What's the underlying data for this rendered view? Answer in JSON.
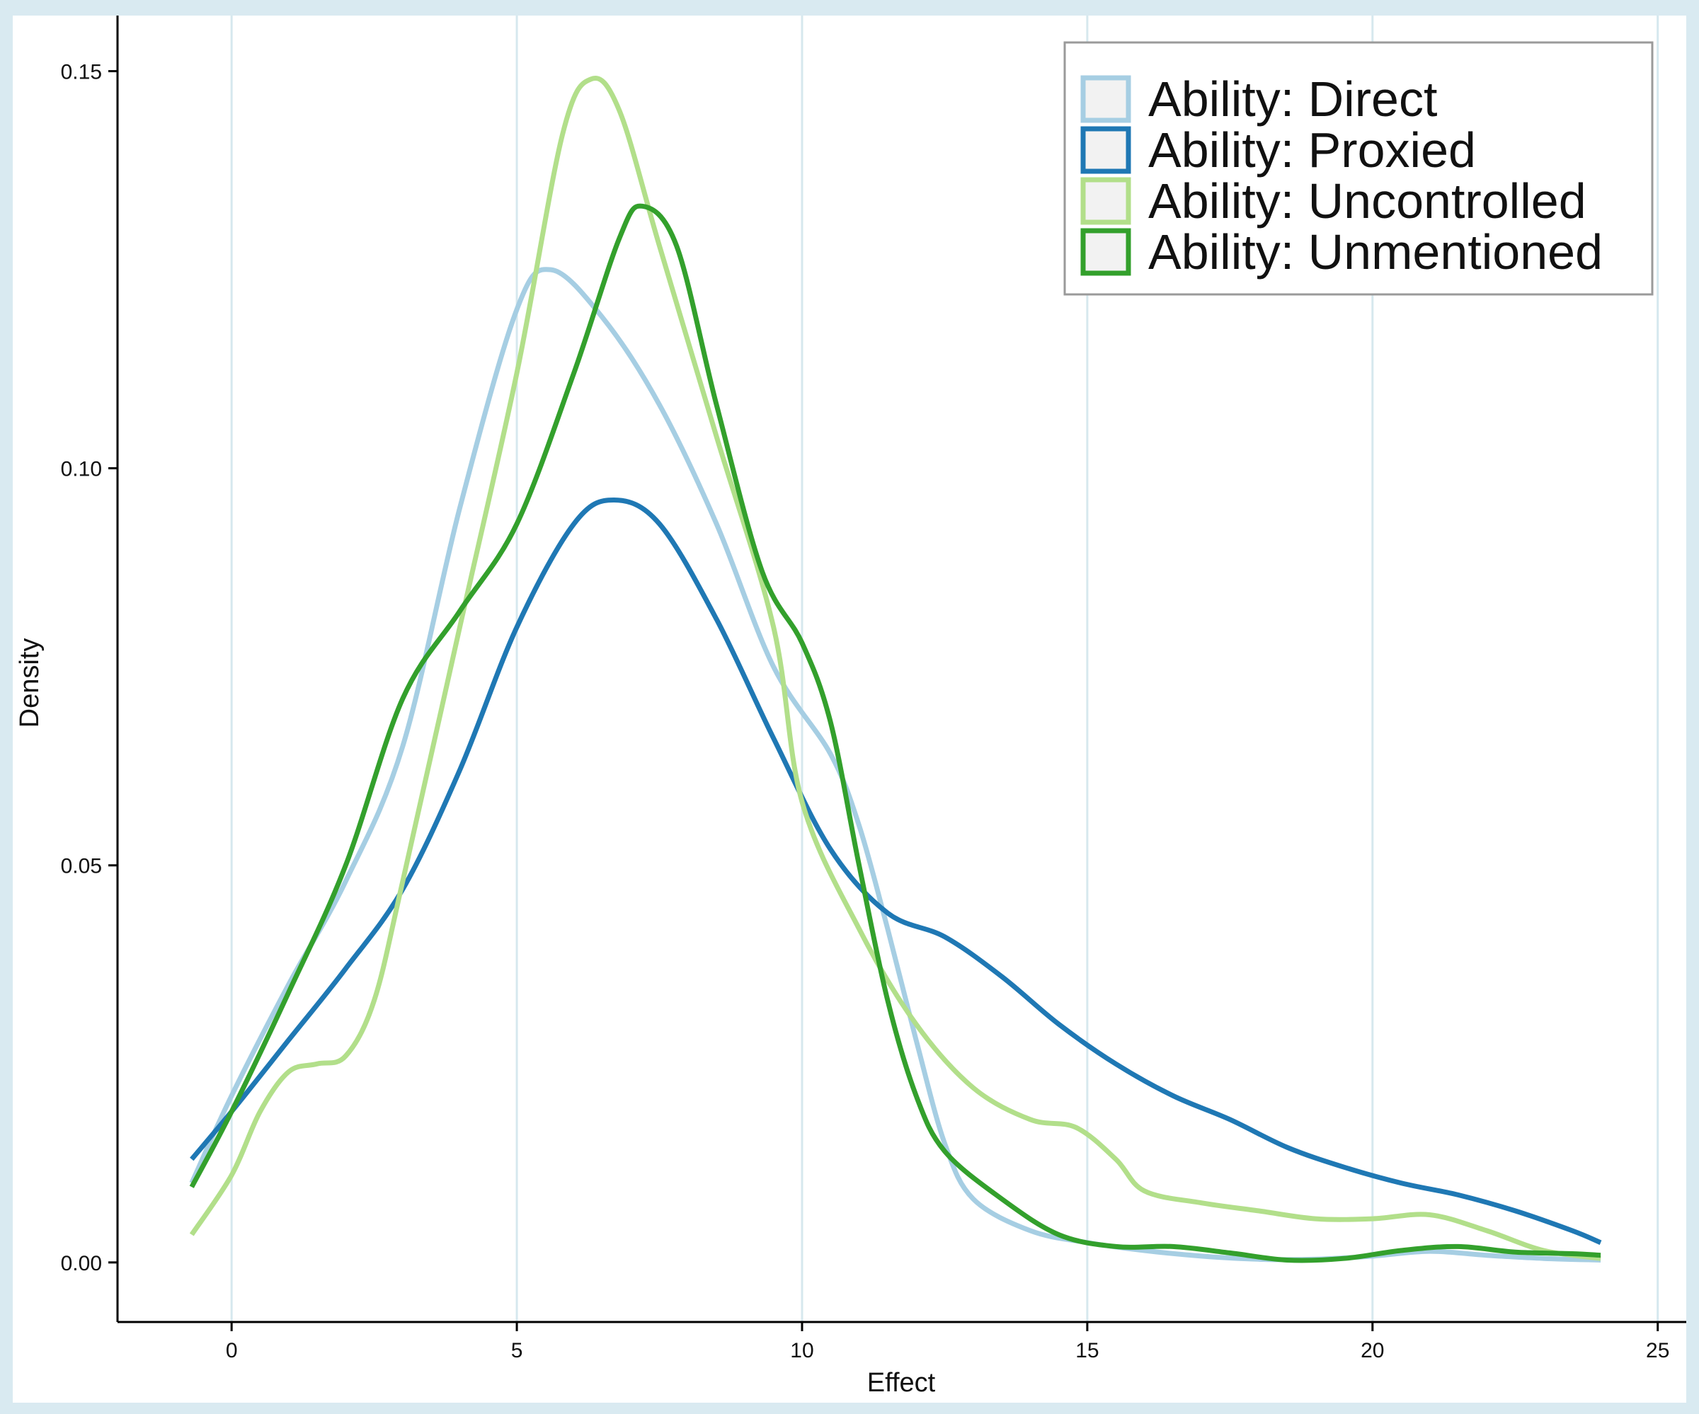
{
  "chart_data": {
    "type": "line",
    "xlabel": "Effect",
    "ylabel": "Density",
    "xlim": [
      -2,
      25.5
    ],
    "ylim": [
      -0.0075,
      0.157
    ],
    "x_ticks": [
      0,
      5,
      10,
      15,
      20,
      25
    ],
    "x_tick_labels": [
      "0",
      "5",
      "10",
      "15",
      "20",
      "25"
    ],
    "y_ticks": [
      0,
      0.05,
      0.1,
      0.15
    ],
    "y_tick_labels": [
      "0.00",
      "0.05",
      "0.10",
      "0.15"
    ],
    "grid": "vertical",
    "legend_position": "top-right",
    "series": [
      {
        "name": "Ability: Direct",
        "color": "#a6cee3",
        "points": [
          [
            -0.7,
            0.01
          ],
          [
            0,
            0.021
          ],
          [
            1,
            0.035
          ],
          [
            2,
            0.048
          ],
          [
            3,
            0.065
          ],
          [
            4,
            0.095
          ],
          [
            5,
            0.12
          ],
          [
            5.6,
            0.125
          ],
          [
            6.5,
            0.119
          ],
          [
            7.5,
            0.108
          ],
          [
            8.5,
            0.093
          ],
          [
            9.5,
            0.075
          ],
          [
            10.5,
            0.064
          ],
          [
            11,
            0.055
          ],
          [
            11.5,
            0.042
          ],
          [
            12,
            0.028
          ],
          [
            12.5,
            0.015
          ],
          [
            13,
            0.008
          ],
          [
            14,
            0.004
          ],
          [
            15,
            0.0025
          ],
          [
            16,
            0.0015
          ],
          [
            17,
            0.0008
          ],
          [
            18,
            0.0004
          ],
          [
            19,
            0.0004
          ],
          [
            20,
            0.0008
          ],
          [
            21,
            0.0014
          ],
          [
            22,
            0.0009
          ],
          [
            23,
            0.0005
          ],
          [
            24,
            0.0003
          ]
        ]
      },
      {
        "name": "Ability: Proxied",
        "color": "#1f78b4",
        "points": [
          [
            -0.7,
            0.013
          ],
          [
            0,
            0.019
          ],
          [
            1,
            0.028
          ],
          [
            2,
            0.037
          ],
          [
            3,
            0.047
          ],
          [
            4,
            0.062
          ],
          [
            5,
            0.08
          ],
          [
            6,
            0.093
          ],
          [
            6.7,
            0.096
          ],
          [
            7.5,
            0.093
          ],
          [
            8.5,
            0.081
          ],
          [
            9.5,
            0.066
          ],
          [
            10.5,
            0.052
          ],
          [
            11.5,
            0.044
          ],
          [
            12.5,
            0.041
          ],
          [
            13.5,
            0.036
          ],
          [
            14.5,
            0.03
          ],
          [
            15.5,
            0.025
          ],
          [
            16.5,
            0.021
          ],
          [
            17.5,
            0.018
          ],
          [
            18.5,
            0.0145
          ],
          [
            19.5,
            0.012
          ],
          [
            20.5,
            0.01
          ],
          [
            21.5,
            0.0085
          ],
          [
            22.5,
            0.0065
          ],
          [
            23.5,
            0.004
          ],
          [
            24,
            0.0025
          ]
        ]
      },
      {
        "name": "Ability: Uncontrolled",
        "color": "#b2df8a",
        "points": [
          [
            -0.7,
            0.0035
          ],
          [
            0,
            0.011
          ],
          [
            0.5,
            0.019
          ],
          [
            1,
            0.024
          ],
          [
            1.5,
            0.025
          ],
          [
            2,
            0.026
          ],
          [
            2.5,
            0.033
          ],
          [
            3,
            0.048
          ],
          [
            4,
            0.08
          ],
          [
            5,
            0.112
          ],
          [
            5.8,
            0.142
          ],
          [
            6.3,
            0.149
          ],
          [
            6.8,
            0.145
          ],
          [
            7.5,
            0.128
          ],
          [
            8.5,
            0.104
          ],
          [
            9.5,
            0.08
          ],
          [
            10,
            0.058
          ],
          [
            11,
            0.042
          ],
          [
            12,
            0.03
          ],
          [
            13,
            0.022
          ],
          [
            14,
            0.018
          ],
          [
            14.8,
            0.017
          ],
          [
            15.5,
            0.013
          ],
          [
            16,
            0.009
          ],
          [
            17,
            0.0075
          ],
          [
            18,
            0.0065
          ],
          [
            19,
            0.0055
          ],
          [
            20,
            0.0055
          ],
          [
            21,
            0.006
          ],
          [
            22,
            0.004
          ],
          [
            23,
            0.0015
          ],
          [
            24,
            0.0005
          ]
        ]
      },
      {
        "name": "Ability: Unmentioned",
        "color": "#33a02c",
        "points": [
          [
            -0.7,
            0.0095
          ],
          [
            0,
            0.019
          ],
          [
            1,
            0.034
          ],
          [
            2,
            0.05
          ],
          [
            3,
            0.071
          ],
          [
            4,
            0.082
          ],
          [
            5,
            0.093
          ],
          [
            6,
            0.112
          ],
          [
            6.8,
            0.129
          ],
          [
            7.2,
            0.133
          ],
          [
            7.8,
            0.128
          ],
          [
            8.5,
            0.108
          ],
          [
            9.3,
            0.087
          ],
          [
            10,
            0.078
          ],
          [
            10.5,
            0.068
          ],
          [
            11,
            0.05
          ],
          [
            11.5,
            0.033
          ],
          [
            12,
            0.021
          ],
          [
            12.5,
            0.014
          ],
          [
            13.5,
            0.008
          ],
          [
            14.5,
            0.0035
          ],
          [
            15.5,
            0.002
          ],
          [
            16.5,
            0.002
          ],
          [
            17.5,
            0.0012
          ],
          [
            18.5,
            0.0003
          ],
          [
            19.5,
            0.0005
          ],
          [
            20.5,
            0.0015
          ],
          [
            21.5,
            0.002
          ],
          [
            22.5,
            0.0013
          ],
          [
            23.5,
            0.0011
          ],
          [
            24,
            0.0009
          ]
        ]
      }
    ]
  }
}
